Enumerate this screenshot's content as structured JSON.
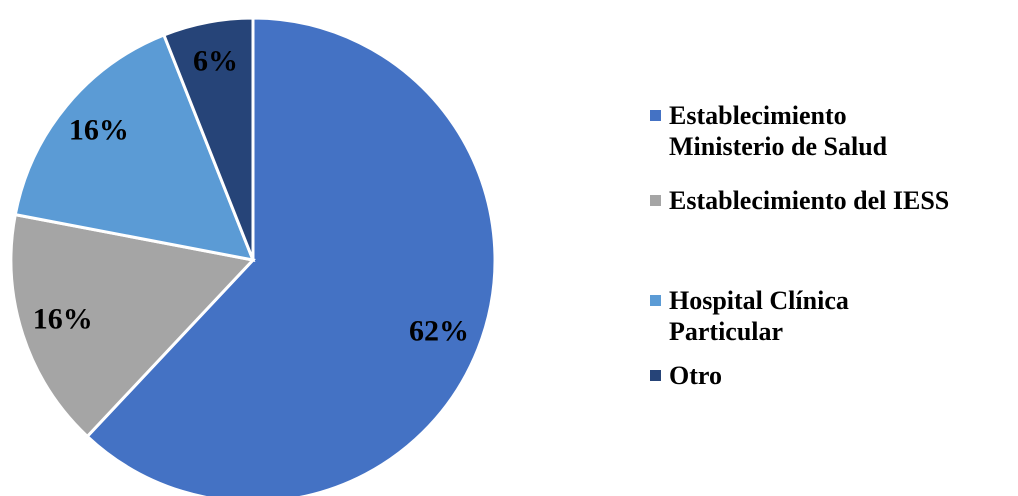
{
  "chart_data": {
    "type": "pie",
    "categories": [
      "Establecimiento Ministerio de Salud",
      "Establecimiento del IESS",
      "Hospital Clínica Particular",
      "Otro"
    ],
    "values": [
      62,
      16,
      16,
      6
    ],
    "value_labels": [
      "62%",
      "16%",
      "16%",
      "6%"
    ],
    "colors": [
      "#4472c4",
      "#a5a5a5",
      "#5b9bd5",
      "#264478"
    ],
    "legend": "right"
  }
}
